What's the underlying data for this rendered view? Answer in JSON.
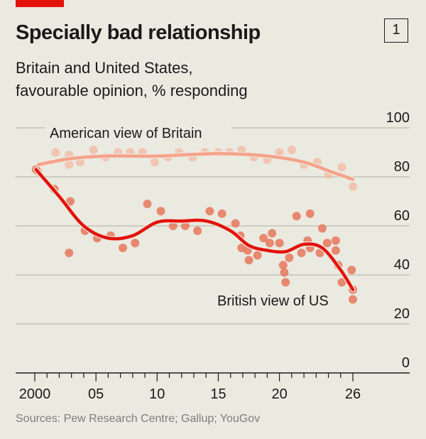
{
  "header": {
    "title": "Specially bad relationship",
    "subtitle_line1": "Britain and United States,",
    "subtitle_line2": "favourable opinion, % responding",
    "chart_number": "1"
  },
  "footer": {
    "source": "Sources: Pew Research Centre; Gallup; YouGov"
  },
  "colors": {
    "brand_red": "#e3120b",
    "background": "#ebeae0",
    "american_line": "#f6a28b",
    "american_dots": "#f2b8a2",
    "british_line": "#e3120b",
    "british_dots": "#e8775c"
  },
  "chart_data": {
    "type": "scatter",
    "title": "Specially bad relationship",
    "subtitle": "Britain and United States, favourable opinion, % responding",
    "xlim": [
      2000,
      2026
    ],
    "ylim": [
      0,
      100
    ],
    "x_ticks": [
      2000,
      2005,
      2010,
      2015,
      2020,
      2026
    ],
    "x_tick_labels": [
      "2000",
      "05",
      "10",
      "15",
      "20",
      "26"
    ],
    "y_ticks": [
      0,
      20,
      40,
      60,
      80,
      100
    ],
    "y_tick_labels": [
      "0",
      "20",
      "40",
      "60",
      "80",
      "100"
    ],
    "y_axis_side": "right",
    "grid": true,
    "series": [
      {
        "name": "American view of Britain",
        "points": [
          [
            2000.3,
            82
          ],
          [
            2001.7,
            90
          ],
          [
            2002.8,
            89
          ],
          [
            2002.8,
            85
          ],
          [
            2003.7,
            86
          ],
          [
            2004.8,
            91
          ],
          [
            2005.8,
            88
          ],
          [
            2006.8,
            90
          ],
          [
            2007.8,
            90
          ],
          [
            2008.8,
            90
          ],
          [
            2009.8,
            86
          ],
          [
            2010.9,
            88
          ],
          [
            2011.8,
            90
          ],
          [
            2012.9,
            88
          ],
          [
            2013.9,
            90
          ],
          [
            2015,
            90
          ],
          [
            2015.9,
            90
          ],
          [
            2016.9,
            91
          ],
          [
            2017.9,
            88
          ],
          [
            2019,
            87
          ],
          [
            2020,
            90
          ],
          [
            2021,
            91
          ],
          [
            2022,
            85
          ],
          [
            2023.1,
            86
          ],
          [
            2024,
            81
          ],
          [
            2025.1,
            84
          ],
          [
            2026,
            76
          ]
        ],
        "trend": [
          [
            2000.3,
            85
          ],
          [
            2003,
            87.5
          ],
          [
            2006,
            88.5
          ],
          [
            2010,
            88.5
          ],
          [
            2015,
            89.5
          ],
          [
            2019,
            88.5
          ],
          [
            2022,
            86
          ],
          [
            2024,
            82.5
          ],
          [
            2026,
            79
          ]
        ]
      },
      {
        "name": "British view of US",
        "points": [
          [
            2000.1,
            83
          ],
          [
            2001.6,
            75
          ],
          [
            2002.9,
            70
          ],
          [
            2002.8,
            49
          ],
          [
            2004.1,
            58
          ],
          [
            2005.1,
            55
          ],
          [
            2006.2,
            56
          ],
          [
            2007.2,
            51
          ],
          [
            2008.2,
            53
          ],
          [
            2009.2,
            69
          ],
          [
            2010.3,
            66
          ],
          [
            2011.3,
            60
          ],
          [
            2012.3,
            60
          ],
          [
            2013.3,
            58
          ],
          [
            2014.3,
            66
          ],
          [
            2015.3,
            65
          ],
          [
            2016.4,
            61
          ],
          [
            2016.8,
            56
          ],
          [
            2016.9,
            51
          ],
          [
            2017.4,
            50
          ],
          [
            2017.5,
            46
          ],
          [
            2018.2,
            48
          ],
          [
            2018.7,
            55
          ],
          [
            2019.2,
            53
          ],
          [
            2019.4,
            57
          ],
          [
            2020,
            53
          ],
          [
            2020.3,
            44
          ],
          [
            2020.4,
            41
          ],
          [
            2020.5,
            37
          ],
          [
            2020.8,
            47
          ],
          [
            2021.4,
            64
          ],
          [
            2021.8,
            49
          ],
          [
            2022.3,
            54
          ],
          [
            2022.5,
            65
          ],
          [
            2022.5,
            51
          ],
          [
            2023.3,
            49
          ],
          [
            2023.5,
            59
          ],
          [
            2023.9,
            53
          ],
          [
            2024.6,
            54
          ],
          [
            2024.6,
            50
          ],
          [
            2024.8,
            44
          ],
          [
            2025.1,
            37
          ],
          [
            2025.9,
            42
          ],
          [
            2026,
            34
          ],
          [
            2026,
            30
          ]
        ],
        "trend": [
          [
            2000.1,
            83
          ],
          [
            2002,
            72
          ],
          [
            2004,
            60
          ],
          [
            2006,
            55
          ],
          [
            2008,
            56
          ],
          [
            2010,
            61.5
          ],
          [
            2012,
            62
          ],
          [
            2014,
            62
          ],
          [
            2016,
            58
          ],
          [
            2017.5,
            52
          ],
          [
            2019,
            50
          ],
          [
            2020.5,
            49.5
          ],
          [
            2022,
            52.5
          ],
          [
            2023.5,
            51
          ],
          [
            2025,
            42
          ],
          [
            2026,
            34
          ]
        ]
      }
    ]
  }
}
